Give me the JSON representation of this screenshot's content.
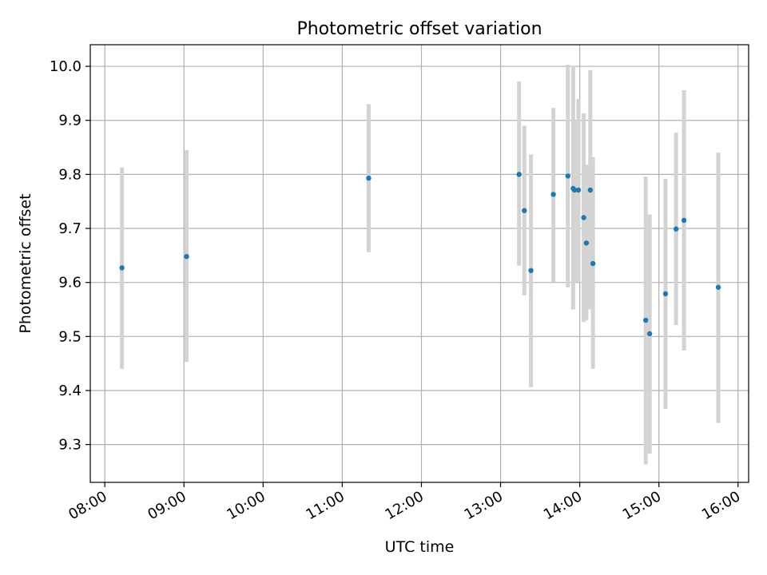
{
  "chart_data": {
    "type": "scatter",
    "title": "Photometric offset variation",
    "xlabel": "UTC time",
    "ylabel": "Photometric offset",
    "xlim": [
      "07:49",
      "16:08"
    ],
    "ylim": [
      9.23,
      10.04
    ],
    "grid": true,
    "x_tick_labels": [
      "08:00",
      "09:00",
      "10:00",
      "11:00",
      "12:00",
      "13:00",
      "14:00",
      "15:00",
      "16:00"
    ],
    "y_tick_labels": [
      "9.3",
      "9.4",
      "9.5",
      "9.6",
      "9.7",
      "9.8",
      "9.9",
      "10.0"
    ],
    "colors": {
      "point": "#1f77b4",
      "errorbar": "#d3d3d3",
      "grid": "#b0b0b0"
    },
    "series": [
      {
        "points": [
          {
            "time": "08:13",
            "y": 9.627,
            "ylow": 9.44,
            "yhigh": 9.813
          },
          {
            "time": "09:02",
            "y": 9.648,
            "ylow": 9.453,
            "yhigh": 9.845
          },
          {
            "time": "11:20",
            "y": 9.793,
            "ylow": 9.656,
            "yhigh": 9.93
          },
          {
            "time": "13:14",
            "y": 9.8,
            "ylow": 9.631,
            "yhigh": 9.972
          },
          {
            "time": "13:18",
            "y": 9.733,
            "ylow": 9.576,
            "yhigh": 9.89
          },
          {
            "time": "13:23",
            "y": 9.622,
            "ylow": 9.406,
            "yhigh": 9.837
          },
          {
            "time": "13:40",
            "y": 9.763,
            "ylow": 9.6,
            "yhigh": 9.923
          },
          {
            "time": "13:51",
            "y": 9.797,
            "ylow": 9.591,
            "yhigh": 10.003
          },
          {
            "time": "13:55",
            "y": 9.774,
            "ylow": 9.55,
            "yhigh": 10.0
          },
          {
            "time": "13:56",
            "y": 9.771,
            "ylow": 9.6,
            "yhigh": 9.9
          },
          {
            "time": "13:59",
            "y": 9.771,
            "ylow": 9.6,
            "yhigh": 9.94
          },
          {
            "time": "14:03",
            "y": 9.72,
            "ylow": 9.527,
            "yhigh": 9.913
          },
          {
            "time": "14:05",
            "y": 9.673,
            "ylow": 9.53,
            "yhigh": 9.818
          },
          {
            "time": "14:08",
            "y": 9.771,
            "ylow": 9.55,
            "yhigh": 9.993
          },
          {
            "time": "14:10",
            "y": 9.635,
            "ylow": 9.44,
            "yhigh": 9.832
          },
          {
            "time": "14:50",
            "y": 9.53,
            "ylow": 9.263,
            "yhigh": 9.796
          },
          {
            "time": "14:53",
            "y": 9.505,
            "ylow": 9.283,
            "yhigh": 9.726
          },
          {
            "time": "15:05",
            "y": 9.579,
            "ylow": 9.366,
            "yhigh": 9.792
          },
          {
            "time": "15:13",
            "y": 9.699,
            "ylow": 9.521,
            "yhigh": 9.877
          },
          {
            "time": "15:19",
            "y": 9.715,
            "ylow": 9.474,
            "yhigh": 9.956
          },
          {
            "time": "15:45",
            "y": 9.591,
            "ylow": 9.34,
            "yhigh": 9.84
          }
        ]
      }
    ]
  }
}
